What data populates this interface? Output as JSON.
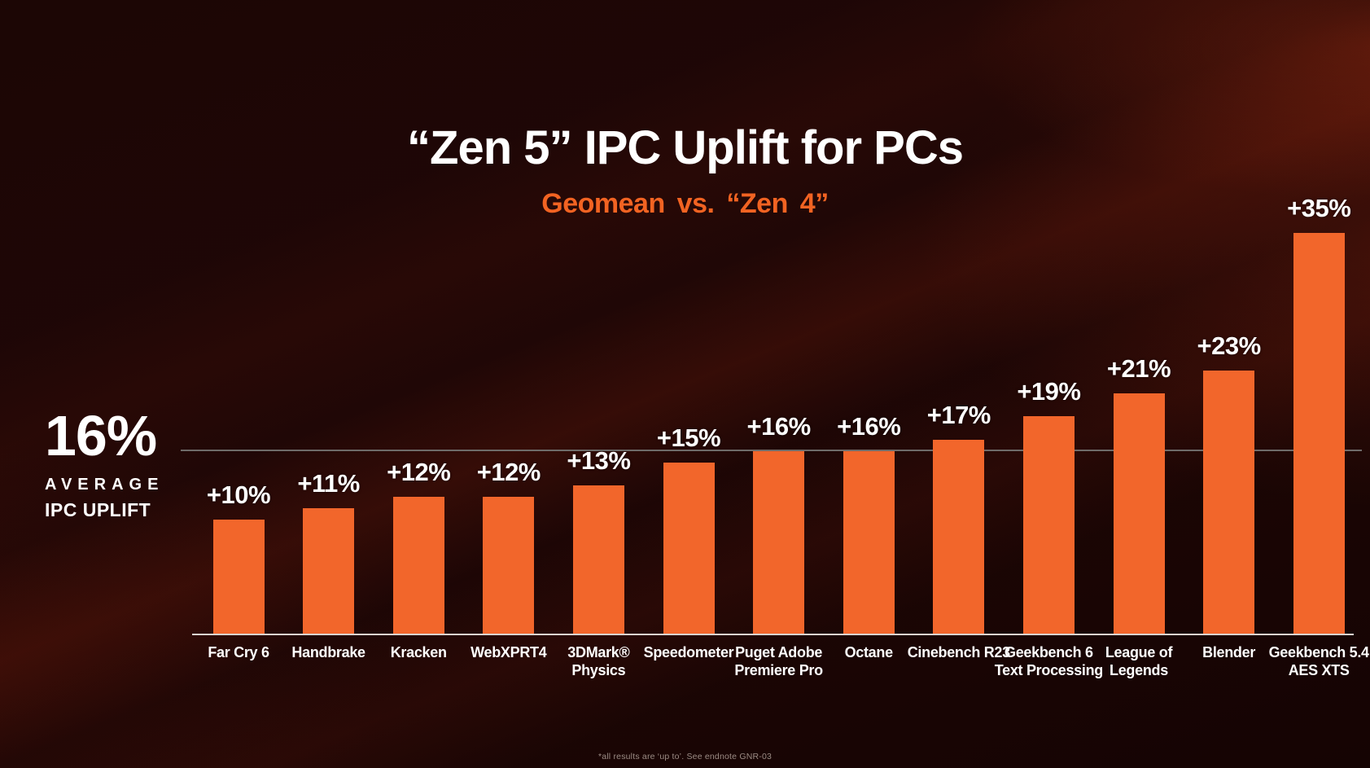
{
  "header": {
    "title": "“Zen 5” IPC Uplift for PCs",
    "subtitle": "Geomean vs. “Zen 4”",
    "title_color": "#FFFFFF",
    "subtitle_color": "#F26322"
  },
  "average": {
    "value_label": "16%",
    "caption_line1": "AVERAGE",
    "caption_line2": "IPC UPLIFT"
  },
  "chart_data": {
    "type": "bar",
    "title": "“Zen 5” IPC Uplift for PCs",
    "subtitle": "Geomean vs. “Zen 4”",
    "categories": [
      "Far Cry 6",
      "Handbrake",
      "Kracken",
      "WebXPRT4",
      "3DMark®\nPhysics",
      "Speedometer",
      "Puget Adobe\nPremiere Pro",
      "Octane",
      "Cinebench R23",
      "Geekbench 6\nText Processing",
      "League of\nLegends",
      "Blender",
      "Geekbench 5.4\nAES XTS"
    ],
    "values": [
      10,
      11,
      12,
      12,
      13,
      15,
      16,
      16,
      17,
      19,
      21,
      23,
      35
    ],
    "value_labels": [
      "+10%",
      "+11%",
      "+12%",
      "+12%",
      "+13%",
      "+15%",
      "+16%",
      "+16%",
      "+17%",
      "+19%",
      "+21%",
      "+23%",
      "+35%"
    ],
    "reference_line_value": 16,
    "reference_line_label": "16% AVERAGE IPC UPLIFT",
    "ylim": [
      0,
      38
    ],
    "xlabel": "",
    "ylabel": "",
    "legend": "none",
    "grid": "single horizontal reference line at 16%",
    "bar_color": "#F2662B",
    "reference_line_color": "#6E6B69",
    "baseline_color": "#DAD4D0"
  },
  "footnote": {
    "text": "*all results are ‘up to’. See endnote GNR-03"
  }
}
